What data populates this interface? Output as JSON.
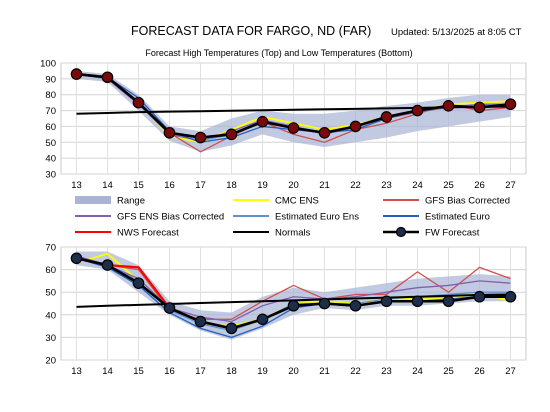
{
  "header": {
    "title": "FORECAST DATA FOR FARGO, ND (FAR)",
    "updated": "Updated: 5/13/2025 at 8:05 CT"
  },
  "chart_data": [
    {
      "type": "line",
      "title": "Forecast  High Temperatures (Top)  and  Low Temperatures (Bottom)",
      "x": [
        13,
        14,
        15,
        16,
        17,
        18,
        19,
        20,
        21,
        22,
        23,
        24,
        25,
        26,
        27
      ],
      "ylim": [
        30,
        100
      ],
      "yticks": [
        30,
        40,
        50,
        60,
        70,
        80,
        90,
        100
      ],
      "grid": true,
      "range": {
        "upper": [
          95,
          93,
          80,
          60,
          57,
          65,
          70,
          68,
          68,
          70,
          73,
          75,
          78,
          80,
          80
        ],
        "lower": [
          90,
          88,
          70,
          51,
          44,
          48,
          55,
          50,
          47,
          50,
          53,
          57,
          60,
          63,
          66
        ]
      },
      "series": [
        {
          "name": "CMC ENS",
          "color": "#ffff00",
          "values": [
            93,
            91,
            75,
            54,
            50,
            58,
            66,
            62,
            58,
            61,
            66,
            70,
            74,
            75,
            76
          ]
        },
        {
          "name": "GFS Bias Corrected",
          "color": "#d05050",
          "values": [
            93,
            90,
            74,
            56,
            44,
            54,
            63,
            55,
            50,
            58,
            62,
            68,
            74,
            70,
            72
          ]
        },
        {
          "name": "GFS ENS Bias Corrected",
          "color": "#8060b0",
          "values": [
            93,
            90,
            74,
            55,
            51,
            57,
            64,
            60,
            55,
            60,
            65,
            69,
            72,
            74,
            74
          ]
        },
        {
          "name": "Estimated Euro Ens",
          "color": "#6090d0",
          "values": [
            93,
            90,
            76,
            56,
            51,
            55,
            62,
            60,
            56,
            60,
            65,
            70,
            73,
            73,
            74
          ]
        },
        {
          "name": "Estimated Euro",
          "color": "#2060c0",
          "values": [
            93,
            91,
            78,
            57,
            50,
            53,
            60,
            58,
            56,
            58,
            65,
            70,
            73,
            72,
            74
          ]
        },
        {
          "name": "NWS Forecast",
          "color": "#ff0000",
          "values": [
            93,
            91,
            75,
            56,
            53,
            55,
            63,
            59,
            56,
            60,
            66,
            70,
            73,
            72,
            74
          ]
        },
        {
          "name": "Normals",
          "color": "#000000",
          "values": [
            68,
            68.5,
            69,
            69.3,
            69.6,
            69.9,
            70.2,
            70.5,
            70.8,
            71.1,
            71.4,
            71.7,
            72,
            72.3,
            72.6
          ]
        },
        {
          "name": "FW Forecast",
          "color": "#000000",
          "values": [
            93,
            91,
            75,
            56,
            53,
            55,
            63,
            59,
            56,
            60,
            66,
            70,
            73,
            72,
            74
          ]
        }
      ]
    },
    {
      "type": "line",
      "x": [
        13,
        14,
        15,
        16,
        17,
        18,
        19,
        20,
        21,
        22,
        23,
        24,
        25,
        26,
        27
      ],
      "ylim": [
        20,
        70
      ],
      "yticks": [
        20,
        30,
        40,
        50,
        60,
        70
      ],
      "grid": true,
      "range": {
        "upper": [
          68,
          68,
          62,
          46,
          42,
          41,
          48,
          52,
          50,
          52,
          54,
          56,
          57,
          58,
          57
        ],
        "lower": [
          62,
          60,
          50,
          40,
          33,
          29,
          34,
          40,
          43,
          42,
          44,
          44,
          45,
          46,
          46
        ]
      },
      "series": [
        {
          "name": "CMC ENS",
          "color": "#ffff00",
          "values": [
            63,
            67,
            55,
            44,
            36,
            35,
            38,
            45,
            46,
            45,
            47,
            47,
            47,
            50,
            46
          ]
        },
        {
          "name": "GFS Bias Corrected",
          "color": "#d05050",
          "values": [
            66,
            62,
            60,
            42,
            38,
            38,
            46,
            53,
            47,
            49,
            49,
            59,
            50,
            61,
            56
          ]
        },
        {
          "name": "GFS ENS Bias Corrected",
          "color": "#8060b0",
          "values": [
            66,
            62,
            56,
            43,
            39,
            37,
            44,
            48,
            47,
            48,
            50,
            52,
            53,
            55,
            54
          ]
        },
        {
          "name": "Estimated Euro Ens",
          "color": "#6090d0",
          "values": [
            65,
            62,
            55,
            42,
            36,
            33,
            38,
            45,
            45,
            45,
            47,
            48,
            49,
            50,
            50
          ]
        },
        {
          "name": "Estimated Euro",
          "color": "#2060c0",
          "values": [
            65,
            61,
            53,
            41,
            34,
            30,
            35,
            43,
            45,
            44,
            46,
            46,
            47,
            48,
            48
          ]
        },
        {
          "name": "NWS Forecast",
          "color": "#ff0000",
          "values": [
            65,
            62,
            61,
            43,
            37,
            34,
            38,
            44,
            45,
            44,
            46,
            46,
            46,
            48,
            48
          ]
        },
        {
          "name": "Normals",
          "color": "#000000",
          "values": [
            43.5,
            44,
            44.4,
            44.8,
            45.2,
            45.6,
            46,
            46.4,
            46.8,
            47.2,
            47.6,
            48,
            48.4,
            48.8,
            49
          ]
        },
        {
          "name": "FW Forecast",
          "color": "#000000",
          "values": [
            65,
            62,
            54,
            43,
            37,
            34,
            38,
            44,
            45,
            44,
            46,
            46,
            46,
            48,
            48
          ]
        }
      ]
    }
  ],
  "legend": {
    "items": [
      {
        "label": "Range",
        "kind": "band",
        "color": "#a8b4d4"
      },
      {
        "label": "CMC ENS",
        "kind": "line",
        "color": "#ffff00"
      },
      {
        "label": "GFS Bias Corrected",
        "kind": "line",
        "color": "#d05050"
      },
      {
        "label": "GFS ENS Bias Corrected",
        "kind": "line",
        "color": "#8060b0"
      },
      {
        "label": "Estimated Euro Ens",
        "kind": "line",
        "color": "#6090d0"
      },
      {
        "label": "Estimated Euro",
        "kind": "line",
        "color": "#2060c0"
      },
      {
        "label": "NWS Forecast",
        "kind": "line",
        "color": "#ff0000"
      },
      {
        "label": "Normals",
        "kind": "line",
        "color": "#000000"
      },
      {
        "label": "FW Forecast",
        "kind": "marker",
        "color": "#000000"
      }
    ]
  }
}
